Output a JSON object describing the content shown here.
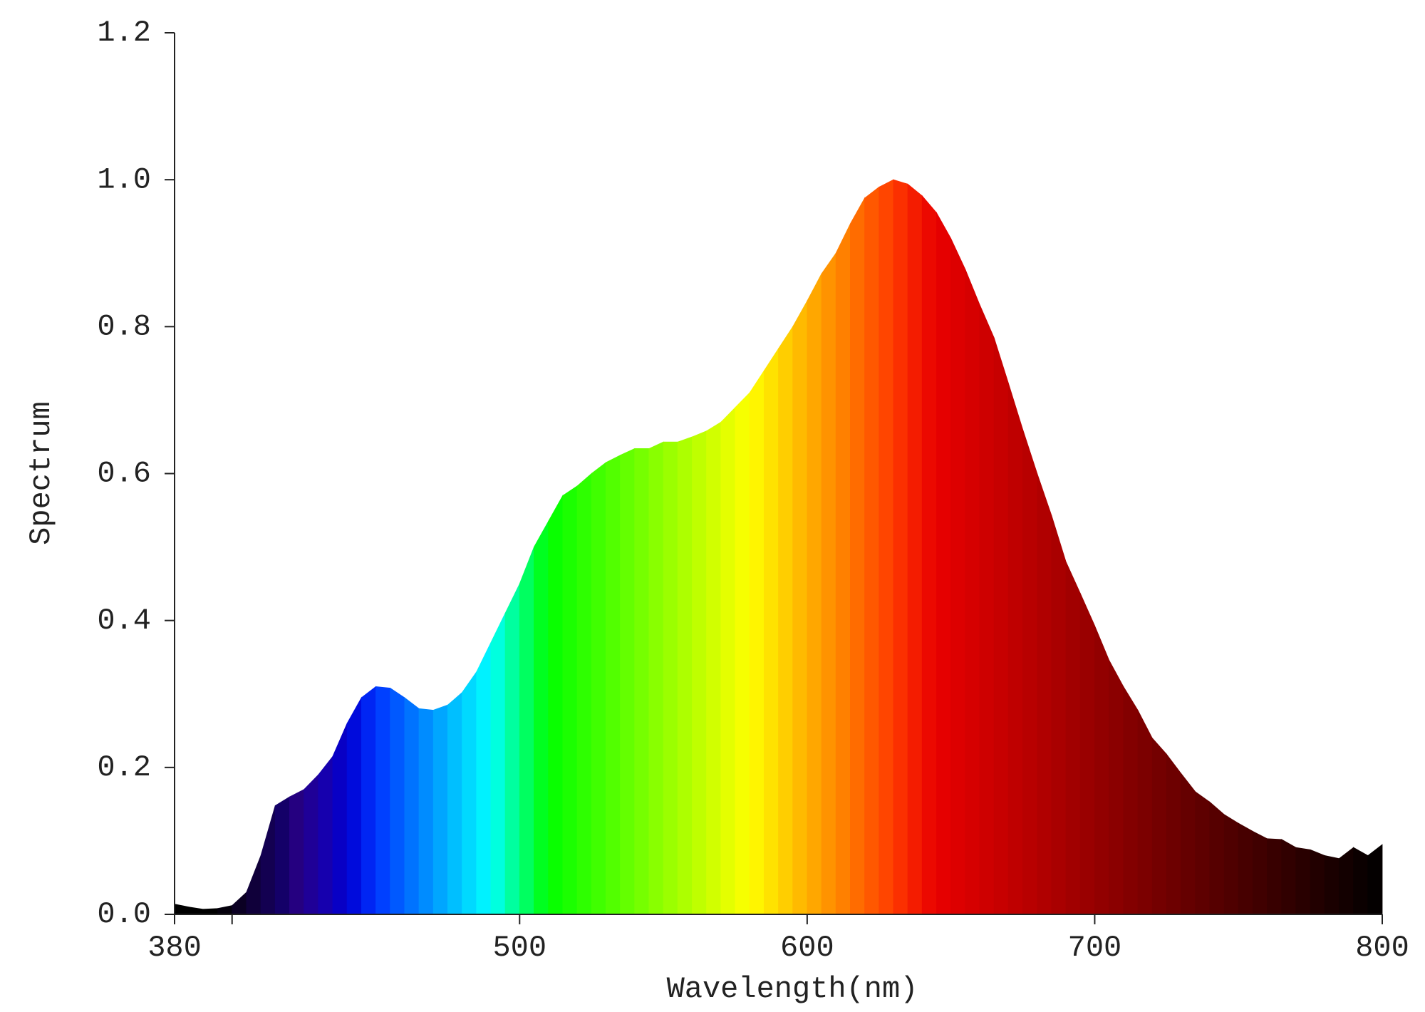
{
  "chart_data": {
    "type": "area",
    "xlabel": "Wavelength(nm)",
    "ylabel": "Spectrum",
    "x": [
      380,
      385,
      390,
      395,
      400,
      405,
      410,
      415,
      420,
      425,
      430,
      435,
      440,
      445,
      450,
      455,
      460,
      465,
      470,
      475,
      480,
      485,
      490,
      495,
      500,
      505,
      510,
      515,
      520,
      525,
      530,
      535,
      540,
      545,
      550,
      555,
      560,
      565,
      570,
      575,
      580,
      585,
      590,
      595,
      600,
      605,
      610,
      615,
      620,
      625,
      630,
      635,
      640,
      645,
      650,
      655,
      660,
      665,
      670,
      675,
      680,
      685,
      690,
      695,
      700,
      705,
      710,
      715,
      720,
      725,
      730,
      735,
      740,
      745,
      750,
      755,
      760,
      765,
      770,
      775,
      780,
      785,
      790,
      795,
      800
    ],
    "values": [
      0.014,
      0.01,
      0.007,
      0.008,
      0.012,
      0.03,
      0.08,
      0.148,
      0.16,
      0.17,
      0.19,
      0.215,
      0.26,
      0.295,
      0.31,
      0.308,
      0.295,
      0.28,
      0.278,
      0.285,
      0.302,
      0.33,
      0.37,
      0.41,
      0.45,
      0.5,
      0.535,
      0.57,
      0.583,
      0.6,
      0.615,
      0.625,
      0.634,
      0.634,
      0.643,
      0.643,
      0.65,
      0.658,
      0.67,
      0.69,
      0.71,
      0.74,
      0.77,
      0.8,
      0.835,
      0.872,
      0.9,
      0.94,
      0.975,
      0.99,
      1.0,
      0.994,
      0.978,
      0.955,
      0.92,
      0.878,
      0.83,
      0.785,
      0.723,
      0.66,
      0.6,
      0.543,
      0.48,
      0.437,
      0.393,
      0.346,
      0.31,
      0.278,
      0.24,
      0.218,
      0.192,
      0.167,
      0.153,
      0.136,
      0.124,
      0.113,
      0.103,
      0.102,
      0.091,
      0.088,
      0.08,
      0.076,
      0.091,
      0.08,
      0.095
    ],
    "xlim": [
      380,
      800
    ],
    "xticks": [
      380,
      500,
      600,
      700,
      800
    ],
    "xminor_ticks": [
      400
    ],
    "ylim": [
      0,
      1.2
    ],
    "yticks": [
      {
        "value": 0,
        "label": "0.0"
      },
      {
        "value": 0.2,
        "label": "0.2"
      },
      {
        "value": 0.4,
        "label": "0.4"
      },
      {
        "value": 0.6,
        "label": "0.6"
      },
      {
        "value": 0.8,
        "label": "0.8"
      },
      {
        "value": 1,
        "label": "1.0"
      },
      {
        "value": 1.2,
        "label": "1.2"
      }
    ]
  }
}
